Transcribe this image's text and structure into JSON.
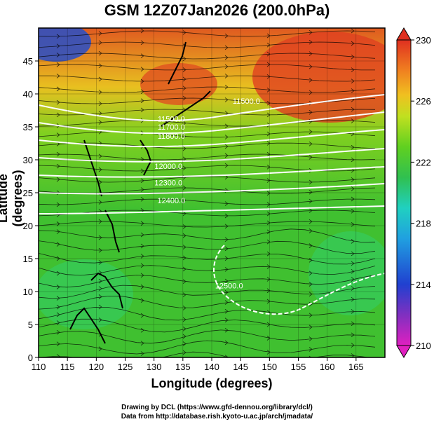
{
  "title": "GSM 12Z07Jan2026 (200.0hPa)",
  "xlabel": "Longitude (degrees)",
  "ylabel": "Latitude  (degrees)",
  "credit_line1": "Drawing by DCL (https://www.gfd-dennou.org/library/dcl/)",
  "credit_line2": "Data from http://database.rish.kyoto-u.ac.jp/arch/jmadata/",
  "chart_data": {
    "type": "heatmap",
    "x_range": [
      110,
      170
    ],
    "y_range": [
      0,
      50
    ],
    "x_ticks": [
      "110",
      "115",
      "120",
      "125",
      "130",
      "135",
      "140",
      "145",
      "150",
      "155",
      "160",
      "165"
    ],
    "y_ticks": [
      "0",
      "5",
      "10",
      "15",
      "20",
      "25",
      "30",
      "35",
      "40",
      "45"
    ],
    "colorbar": {
      "ticks": [
        "210",
        "214",
        "218",
        "222",
        "226",
        "230"
      ],
      "range": [
        210,
        230
      ],
      "colors": [
        "#e020c0",
        "#8030c0",
        "#2040d0",
        "#20a0e0",
        "#20d0c0",
        "#30c050",
        "#60d020",
        "#c0e020",
        "#f0c020",
        "#f08020",
        "#e03020"
      ]
    },
    "contour_labels": [
      {
        "text": "11500.0",
        "lon": 133,
        "lat": 35.8
      },
      {
        "text": "11700.0",
        "lon": 133,
        "lat": 34.6
      },
      {
        "text": "11800.0",
        "lon": 133,
        "lat": 33.2
      },
      {
        "text": "12000.0",
        "lon": 132.5,
        "lat": 28.6
      },
      {
        "text": "12300.0",
        "lon": 132.5,
        "lat": 26.1
      },
      {
        "text": "12400.0",
        "lon": 133,
        "lat": 23.4
      },
      {
        "text": "12500.0",
        "lon": 143,
        "lat": 10.5
      },
      {
        "text": "11500.0",
        "lon": 146,
        "lat": 38.5
      }
    ]
  }
}
